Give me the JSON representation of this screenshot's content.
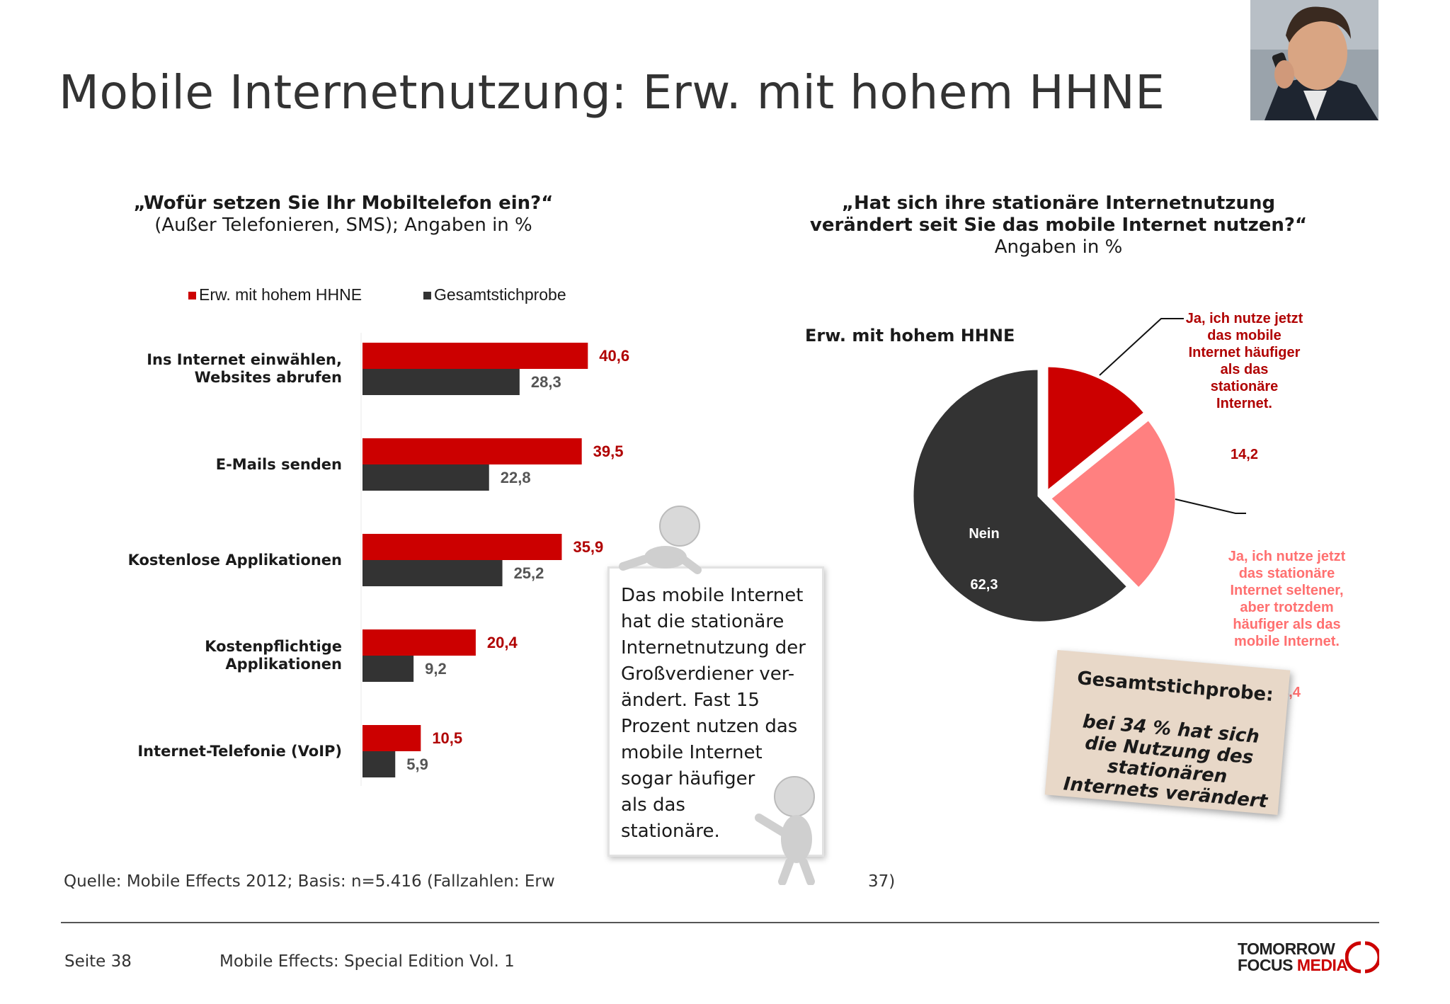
{
  "page": {
    "title": "Mobile Internetnutzung: Erw. mit hohem HHNE",
    "source_start": "Quelle: Mobile Effects 2012; Basis: n=5.416 (Fallzahlen: Erw",
    "source_end": "37)",
    "page_number": "Seite 38",
    "footer_title": "Mobile Effects: Special Edition Vol. 1",
    "logo_top": "TOMORROW",
    "logo_bottom_1": "FOCUS",
    "logo_bottom_2": "MEDIA"
  },
  "bar_chart": {
    "question": "„Wofür setzen Sie Ihr Mobiltelefon ein?“",
    "subtitle": "(Außer Telefonieren, SMS); Angaben in %"
  },
  "pie_chart": {
    "question_line1": "„Hat sich ihre stationäre Internetnutzung",
    "question_line2": "verändert seit Sie das mobile Internet nutzen?“",
    "subtitle": "Angaben in %",
    "group_label": "Erw. mit hohem HHNE"
  },
  "bubble": {
    "text": "Das mobile Internet\nhat die stationäre\nInternetnutzung der\nGroßverdiener ver-\nändert. Fast 15\nProzent nutzen das\nmobile Internet\nsogar häufiger\nals das\nstationäre."
  },
  "note": {
    "title": "Gesamtstichprobe:",
    "body": "bei 34 % hat sich\ndie Nutzung des\nstationären\nInternets verändert"
  },
  "colors": {
    "red": "#cc0000",
    "dark": "#333333",
    "pink": "#ff8080",
    "label_red": "#b00000",
    "label_dark": "#555555"
  },
  "chart_data": [
    {
      "type": "bar",
      "orientation": "horizontal",
      "title": "„Wofür setzen Sie Ihr Mobiltelefon ein?“",
      "subtitle": "(Außer Telefonieren, SMS); Angaben in %",
      "categories": [
        "Ins Internet einwählen,\nWebsites abrufen",
        "E-Mails senden",
        "Kostenlose Applikationen",
        "Kostenpflichtige\nApplikationen",
        "Internet-Telefonie (VoIP)"
      ],
      "series": [
        {
          "name": "Erw. mit hohem HHNE",
          "color": "#cc0000",
          "values": [
            40.6,
            39.5,
            35.9,
            20.4,
            10.5
          ],
          "labels": [
            "40,6",
            "39,5",
            "35,9",
            "20,4",
            "10,5"
          ]
        },
        {
          "name": "Gesamtstichprobe",
          "color": "#333333",
          "values": [
            28.3,
            22.8,
            25.2,
            9.2,
            5.9
          ],
          "labels": [
            "28,3",
            "22,8",
            "25,2",
            "9,2",
            "5,9"
          ]
        }
      ],
      "legend": "top",
      "grid": false
    },
    {
      "type": "pie",
      "title": "„Hat sich ihre stationäre Internetnutzung verändert seit Sie das mobile Internet nutzen?“",
      "subtitle": "Angaben in %",
      "group": "Erw. mit hohem HHNE",
      "slices": [
        {
          "label": "Ja, ich nutze jetzt\ndas mobile\nInternet häufiger\nals das\nstationäre\nInternet.",
          "value": 14.2,
          "value_label": "14,2",
          "color": "#cc0000",
          "exploded": true
        },
        {
          "label": "Ja, ich nutze jetzt\ndas stationäre\nInternet seltener,\naber trotzdem\nhäufiger als das\nmobile Internet.",
          "value": 23.4,
          "value_label": "23,4",
          "color": "#ff8080",
          "exploded": true
        },
        {
          "label": "Nein",
          "value": 62.3,
          "value_label": "62,3",
          "color": "#333333",
          "exploded": false
        }
      ]
    }
  ]
}
